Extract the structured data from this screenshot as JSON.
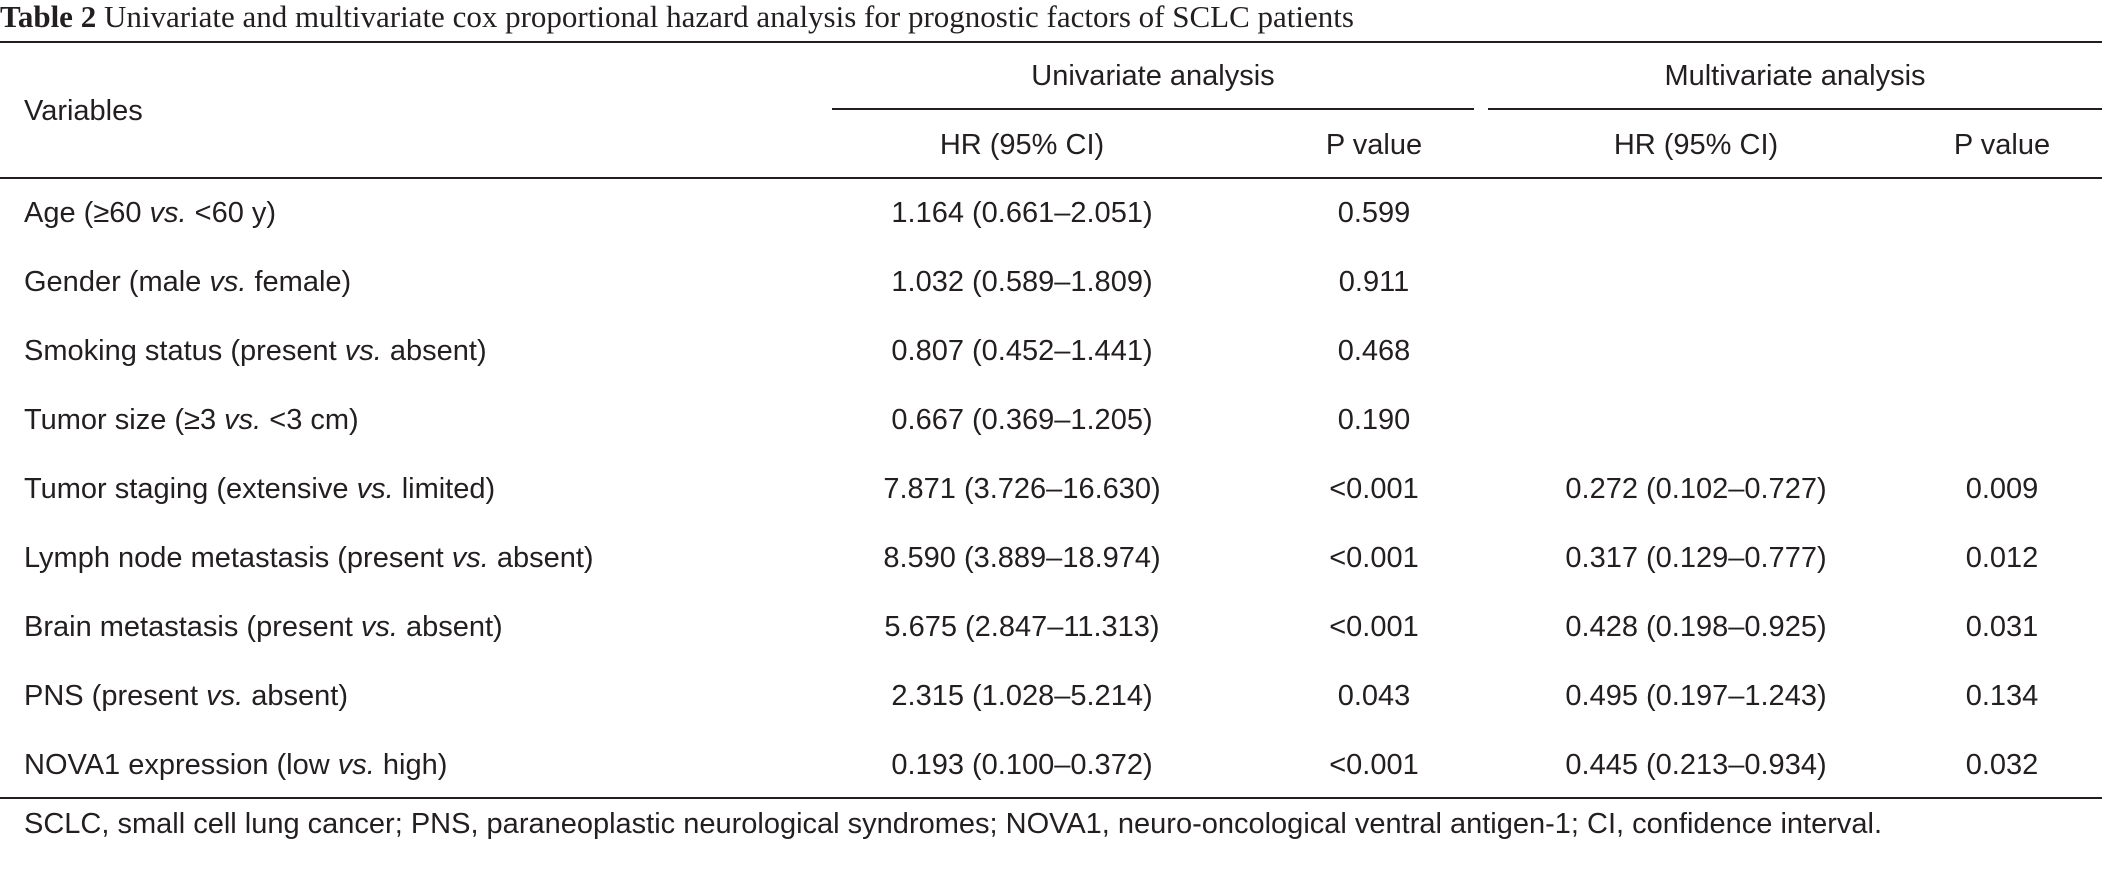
{
  "table": {
    "caption_label": "Table 2",
    "caption_text": "Univariate and multivariate cox proportional hazard analysis for prognostic factors of SCLC patients",
    "headers": {
      "variables": "Variables",
      "univariate": "Univariate analysis",
      "multivariate": "Multivariate analysis",
      "uni_hr": "HR (95% CI)",
      "uni_p": "P value",
      "multi_hr": "HR (95% CI)",
      "multi_p": "P value"
    },
    "rows": [
      {
        "pre": "Age (≥60 ",
        "vs": "vs.",
        "post": " <60 y)",
        "uni_hr": "1.164 (0.661–2.051)",
        "uni_p": "0.599",
        "multi_hr": "",
        "multi_p": ""
      },
      {
        "pre": "Gender (male ",
        "vs": "vs.",
        "post": " female)",
        "uni_hr": "1.032 (0.589–1.809)",
        "uni_p": "0.911",
        "multi_hr": "",
        "multi_p": ""
      },
      {
        "pre": "Smoking status (present ",
        "vs": "vs.",
        "post": " absent)",
        "uni_hr": "0.807 (0.452–1.441)",
        "uni_p": "0.468",
        "multi_hr": "",
        "multi_p": ""
      },
      {
        "pre": "Tumor size (≥3 ",
        "vs": "vs.",
        "post": " <3 cm)",
        "uni_hr": "0.667 (0.369–1.205)",
        "uni_p": "0.190",
        "multi_hr": "",
        "multi_p": ""
      },
      {
        "pre": "Tumor staging (extensive ",
        "vs": "vs.",
        "post": " limited)",
        "uni_hr": "7.871 (3.726–16.630)",
        "uni_p": "<0.001",
        "multi_hr": "0.272 (0.102–0.727)",
        "multi_p": "0.009"
      },
      {
        "pre": "Lymph node metastasis (present ",
        "vs": "vs.",
        "post": " absent)",
        "uni_hr": "8.590 (3.889–18.974)",
        "uni_p": "<0.001",
        "multi_hr": "0.317 (0.129–0.777)",
        "multi_p": "0.012"
      },
      {
        "pre": "Brain metastasis (present ",
        "vs": "vs.",
        "post": " absent)",
        "uni_hr": "5.675 (2.847–11.313)",
        "uni_p": "<0.001",
        "multi_hr": "0.428 (0.198–0.925)",
        "multi_p": "0.031"
      },
      {
        "pre": "PNS (present ",
        "vs": "vs.",
        "post": " absent)",
        "uni_hr": "2.315 (1.028–5.214)",
        "uni_p": "0.043",
        "multi_hr": "0.495 (0.197–1.243)",
        "multi_p": "0.134"
      },
      {
        "pre": "NOVA1 expression (low ",
        "vs": "vs.",
        "post": " high)",
        "uni_hr": "0.193 (0.100–0.372)",
        "uni_p": "<0.001",
        "multi_hr": "0.445 (0.213–0.934)",
        "multi_p": "0.032"
      }
    ],
    "footnote": "SCLC, small cell lung cancer; PNS, paraneoplastic neurological syndromes; NOVA1, neuro-oncological ventral antigen-1; CI, confidence interval."
  }
}
